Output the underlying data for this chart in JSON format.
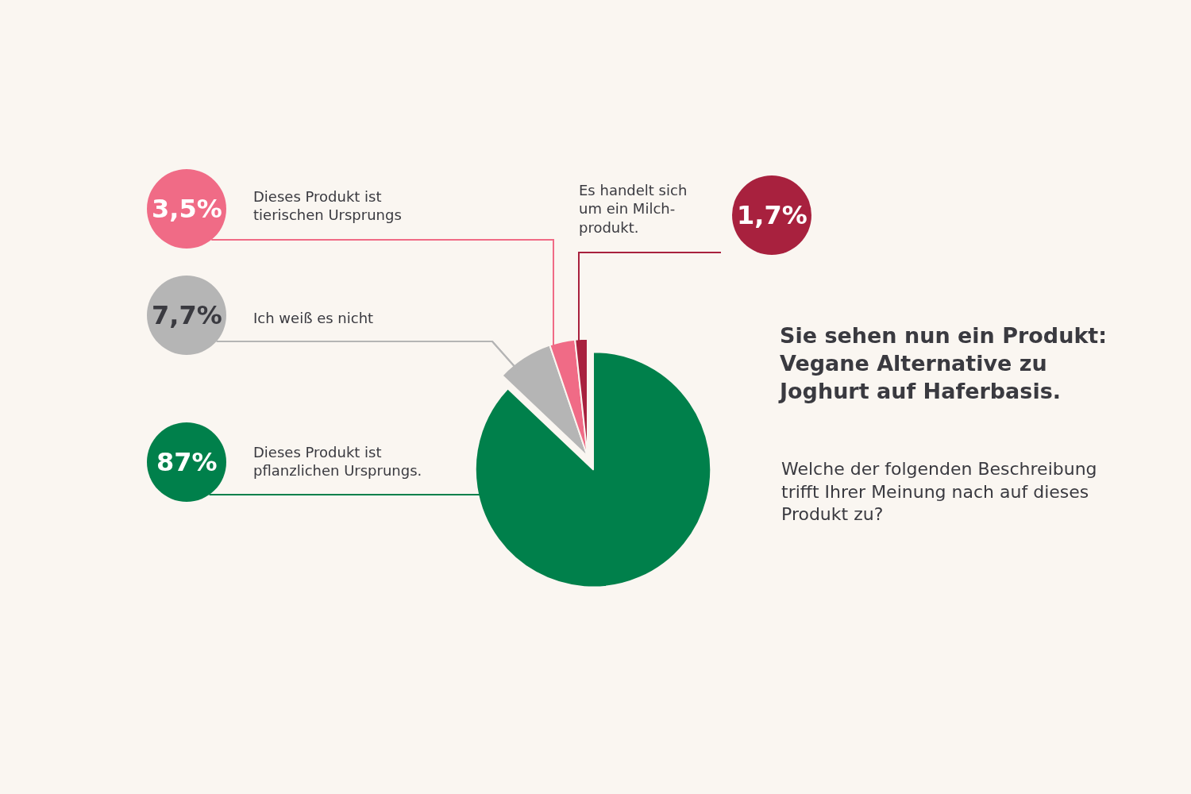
{
  "chart_data": {
    "type": "pie",
    "title": "Sie sehen nun ein Produkt:\nVegane Alternative zu\nJoghurt auf Haferbasis.",
    "subtitle": "Welche der folgenden Beschreibung\ntrifft Ihrer Meinung nach auf dieses\nProdukt zu?",
    "categories": [
      "Dieses Produkt ist\npflanzlichen Ursprungs.",
      "Ich weiß es nicht",
      "Dieses Produkt ist\ntierischen Ursprungs",
      "Es handelt sich\num ein Milch-\nprodukt."
    ],
    "values": [
      87,
      7.7,
      3.5,
      1.7
    ],
    "colors": [
      "#00804b",
      "#b5b5b5",
      "#f06b86",
      "#a8213e"
    ],
    "value_labels": [
      "87%",
      "7,7%",
      "3,5%",
      "1,7%"
    ]
  }
}
